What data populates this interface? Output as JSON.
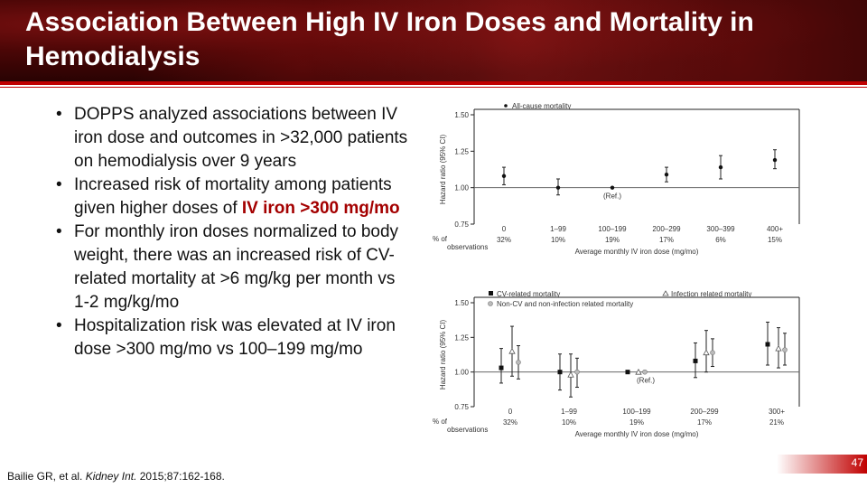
{
  "slide": {
    "title": "Association Between High IV Iron Doses and Mortality in Hemodialysis",
    "bullets": {
      "b1": "DOPPS analyzed associations between IV iron dose and outcomes in >32,000 patients on hemodialysis over 9 years",
      "b2_pre": "Increased risk of mortality among patients given higher doses of ",
      "b2_hl": "IV iron >300 mg/mo",
      "b3": "For monthly iron doses normalized to body weight, there was an increased risk of CV-related mortality at >6 mg/kg per month vs 1-2 mg/kg/mo",
      "b4": "Hospitalization risk was elevated at IV iron dose >300 mg/mo vs 100–199 mg/mo"
    },
    "bullet_char": "•",
    "citation_pre": "Bailie GR, et al. ",
    "citation_journal": "Kidney Int.",
    "citation_post": " 2015;87:162-168.",
    "page_number": "47",
    "colors": {
      "accent": "#c00000",
      "highlight": "#a40000"
    }
  },
  "chart_data": [
    {
      "type": "scatter",
      "ylabel": "Hazard ratio (95% CI)",
      "ylim": [
        0.75,
        1.5
      ],
      "yticks": [
        "1.50",
        "1.25",
        "1.00",
        "0.75"
      ],
      "categories": [
        "0",
        "1–99",
        "100–199",
        "200–299",
        "300–399",
        "400+"
      ],
      "percent_label": "% of observations",
      "percent_label_lines": [
        "% of",
        "observations"
      ],
      "percents": [
        "32%",
        "10%",
        "19%",
        "17%",
        "6%",
        "15%"
      ],
      "xlabel": "Average monthly IV iron dose (mg/mo)",
      "ref_label": "(Ref.)",
      "legend": [
        "All-cause mortality"
      ],
      "series": [
        {
          "name": "All-cause mortality",
          "marker": "dot",
          "values": [
            1.08,
            1.0,
            1.0,
            1.09,
            1.14,
            1.19
          ],
          "lower": [
            1.02,
            0.95,
            1.0,
            1.04,
            1.06,
            1.13
          ],
          "upper": [
            1.14,
            1.06,
            1.0,
            1.14,
            1.22,
            1.26
          ]
        }
      ]
    },
    {
      "type": "scatter",
      "ylabel": "Hazard ratio (95% CI)",
      "ylim": [
        0.75,
        1.5
      ],
      "yticks": [
        "1.50",
        "1.25",
        "1.00",
        "0.75"
      ],
      "categories": [
        "0",
        "1–99",
        "100–199",
        "200–299",
        "300+"
      ],
      "percent_label": "% of observations",
      "percent_label_lines": [
        "% of",
        "observations"
      ],
      "percents": [
        "32%",
        "10%",
        "19%",
        "17%",
        "21%"
      ],
      "xlabel": "Average monthly IV iron dose (mg/mo)",
      "ref_label": "(Ref.)",
      "legend": [
        "CV-related mortality",
        "Infection related mortality",
        "Non-CV and non-infection related mortality"
      ],
      "series": [
        {
          "name": "CV-related mortality",
          "marker": "square",
          "values": [
            1.03,
            1.0,
            1.0,
            1.08,
            1.2
          ],
          "lower": [
            0.92,
            0.87,
            1.0,
            0.96,
            1.05
          ],
          "upper": [
            1.17,
            1.13,
            1.0,
            1.21,
            1.36
          ]
        },
        {
          "name": "Infection related mortality",
          "marker": "triangle",
          "values": [
            1.15,
            0.98,
            1.0,
            1.14,
            1.17
          ],
          "lower": [
            0.97,
            0.82,
            1.0,
            1.0,
            1.03
          ],
          "upper": [
            1.33,
            1.13,
            1.0,
            1.3,
            1.32
          ]
        },
        {
          "name": "Non-CV and non-infection related mortality",
          "marker": "circle",
          "values": [
            1.07,
            1.0,
            1.0,
            1.14,
            1.16
          ],
          "lower": [
            0.95,
            0.89,
            1.0,
            1.04,
            1.05
          ],
          "upper": [
            1.19,
            1.1,
            1.0,
            1.24,
            1.28
          ]
        }
      ]
    }
  ]
}
